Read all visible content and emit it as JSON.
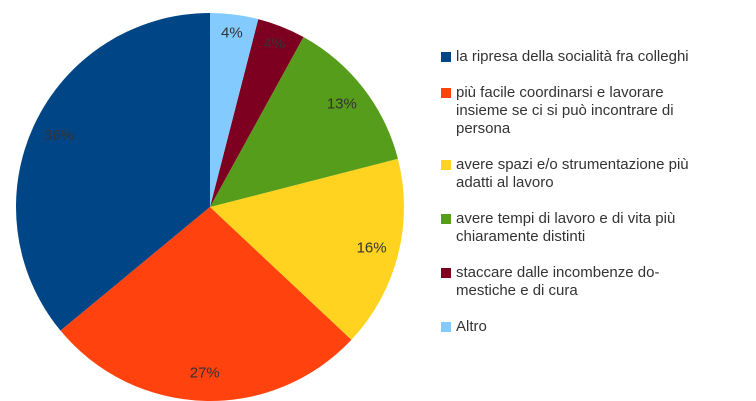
{
  "chart_data": {
    "type": "pie",
    "categories": [
      "la ripresa della socialità fra colleghi",
      "più facile coordinarsi e lavorare\ninsieme se ci si può incontrare di\npersona",
      "avere spazi e/o strumentazione più\nadatti al lavoro",
      "avere tempi di lavoro e di vita più\nchiaramente distinti",
      "staccare dalle incombenze do-\nmestiche e di cura",
      "Altro"
    ],
    "values": [
      36,
      27,
      16,
      13,
      4,
      4
    ],
    "value_labels": [
      "36%",
      "27%",
      "16%",
      "13%",
      "4%",
      "4%"
    ],
    "colors": [
      "#004586",
      "#ff420e",
      "#ffd320",
      "#579d1c",
      "#7e0021",
      "#83caff"
    ],
    "legend": "right"
  }
}
